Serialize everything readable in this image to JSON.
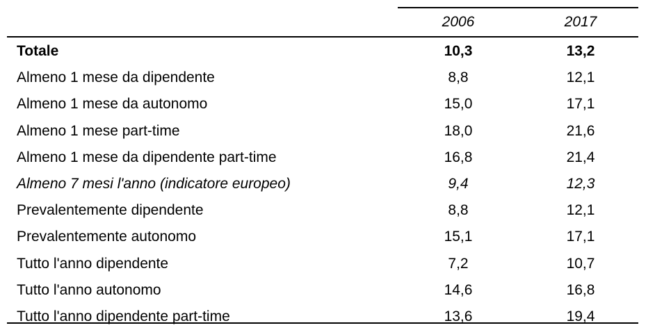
{
  "table": {
    "columns": [
      "",
      "2006",
      "2017"
    ],
    "rows": [
      {
        "label": "Totale",
        "v2006": "10,3",
        "v2017": "13,2",
        "style": "bold"
      },
      {
        "label": "Almeno 1 mese da dipendente",
        "v2006": "8,8",
        "v2017": "12,1",
        "style": "normal"
      },
      {
        "label": "Almeno 1 mese da autonomo",
        "v2006": "15,0",
        "v2017": "17,1",
        "style": "normal"
      },
      {
        "label": "Almeno 1 mese part-time",
        "v2006": "18,0",
        "v2017": "21,6",
        "style": "normal"
      },
      {
        "label": "Almeno 1 mese da dipendente part-time",
        "v2006": "16,8",
        "v2017": "21,4",
        "style": "normal"
      },
      {
        "label": "Almeno 7 mesi l'anno (indicatore europeo)",
        "v2006": "9,4",
        "v2017": "12,3",
        "style": "italic"
      },
      {
        "label": "Prevalentemente dipendente",
        "v2006": "8,8",
        "v2017": "12,1",
        "style": "normal"
      },
      {
        "label": "Prevalentemente autonomo",
        "v2006": "15,1",
        "v2017": "17,1",
        "style": "normal"
      },
      {
        "label": "Tutto l'anno dipendente",
        "v2006": "7,2",
        "v2017": "10,7",
        "style": "normal"
      },
      {
        "label": "Tutto l'anno autonomo",
        "v2006": "14,6",
        "v2017": "16,8",
        "style": "normal"
      },
      {
        "label": "Tutto l'anno dipendente part-time",
        "v2006": "13,6",
        "v2017": "19,4",
        "style": "normal"
      }
    ]
  }
}
